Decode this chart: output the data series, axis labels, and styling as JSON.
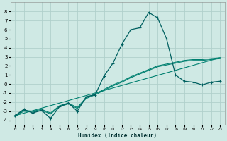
{
  "xlabel": "Humidex (Indice chaleur)",
  "xlim": [
    -0.5,
    23.5
  ],
  "ylim": [
    -4.5,
    9.0
  ],
  "yticks": [
    -4,
    -3,
    -2,
    -1,
    0,
    1,
    2,
    3,
    4,
    5,
    6,
    7,
    8
  ],
  "xticks": [
    0,
    1,
    2,
    3,
    4,
    5,
    6,
    7,
    8,
    9,
    10,
    11,
    12,
    13,
    14,
    15,
    16,
    17,
    18,
    19,
    20,
    21,
    22,
    23
  ],
  "background_color": "#cfe9e4",
  "grid_color": "#b0d0cc",
  "line_color_main": "#006060",
  "line_color_smooth": "#008070",
  "series_main_x": [
    0,
    1,
    2,
    3,
    4,
    5,
    6,
    7,
    8,
    9,
    10,
    11,
    12,
    13,
    14,
    15,
    16,
    17,
    18,
    19,
    20,
    21,
    22,
    23
  ],
  "series_main_y": [
    -3.5,
    -2.8,
    -3.2,
    -2.9,
    -3.8,
    -2.5,
    -2.1,
    -3.0,
    -1.4,
    -1.2,
    0.9,
    2.3,
    4.4,
    6.0,
    6.2,
    7.9,
    7.3,
    5.0,
    1.0,
    0.3,
    0.2,
    -0.1,
    0.2,
    0.3
  ],
  "series_smooth1_x": [
    0,
    1,
    2,
    3,
    4,
    5,
    6,
    7,
    8,
    9,
    10,
    11,
    12,
    13,
    14,
    15,
    16,
    17,
    18,
    19,
    20,
    21,
    22,
    23
  ],
  "series_smooth1_y": [
    -3.5,
    -2.9,
    -3.0,
    -2.8,
    -3.2,
    -2.4,
    -2.1,
    -2.6,
    -1.5,
    -1.1,
    -0.6,
    -0.1,
    0.3,
    0.8,
    1.2,
    1.6,
    2.0,
    2.2,
    2.4,
    2.6,
    2.7,
    2.7,
    2.8,
    2.9
  ],
  "series_smooth2_x": [
    0,
    1,
    2,
    3,
    4,
    5,
    6,
    7,
    8,
    9,
    10,
    11,
    12,
    13,
    14,
    15,
    16,
    17,
    18,
    19,
    20,
    21,
    22,
    23
  ],
  "series_smooth2_y": [
    -3.6,
    -3.0,
    -3.1,
    -2.9,
    -3.3,
    -2.5,
    -2.2,
    -2.7,
    -1.6,
    -1.2,
    -0.7,
    -0.2,
    0.2,
    0.7,
    1.1,
    1.5,
    1.9,
    2.1,
    2.3,
    2.5,
    2.6,
    2.6,
    2.7,
    2.8
  ],
  "series_line_x": [
    0,
    23
  ],
  "series_line_y": [
    -3.5,
    2.9
  ]
}
